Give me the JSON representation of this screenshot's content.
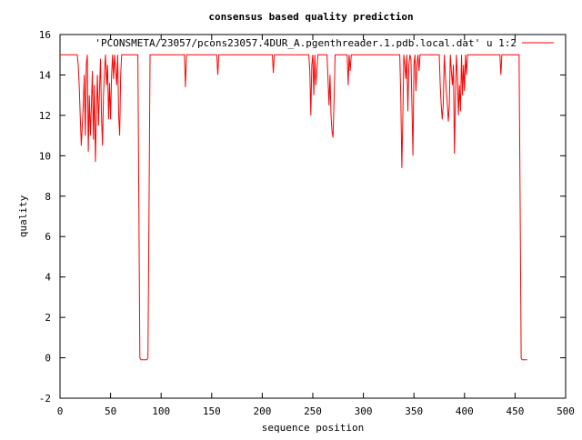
{
  "chart_data": {
    "type": "line",
    "title": "consensus based quality prediction",
    "xlabel": "sequence position",
    "ylabel": "quality",
    "xlim": [
      0,
      500
    ],
    "ylim": [
      -2,
      16
    ],
    "xticks": [
      0,
      50,
      100,
      150,
      200,
      250,
      300,
      350,
      400,
      450,
      500
    ],
    "yticks": [
      -2,
      0,
      2,
      4,
      6,
      8,
      10,
      12,
      14,
      16
    ],
    "grid": false,
    "legend_position": "top-right",
    "series": [
      {
        "name": "'PCONSMETA/23057/pcons23057.4DUR_A.pgenthreader.1.pdb.local.dat' u 1:2",
        "color": "#ff0000",
        "points": [
          [
            0,
            15
          ],
          [
            17,
            15
          ],
          [
            18,
            14.5
          ],
          [
            19,
            13.5
          ],
          [
            20,
            12
          ],
          [
            21,
            10.5
          ],
          [
            22,
            11.5
          ],
          [
            23,
            12.5
          ],
          [
            24,
            14
          ],
          [
            25,
            11
          ],
          [
            26,
            14.5
          ],
          [
            27,
            15
          ],
          [
            28,
            10.2
          ],
          [
            29,
            13
          ],
          [
            30,
            11
          ],
          [
            31,
            12.5
          ],
          [
            32,
            14.2
          ],
          [
            33,
            10.8
          ],
          [
            34,
            13.5
          ],
          [
            35,
            9.7
          ],
          [
            36,
            12
          ],
          [
            37,
            14
          ],
          [
            38,
            11.5
          ],
          [
            39,
            13.2
          ],
          [
            40,
            14.8
          ],
          [
            41,
            12
          ],
          [
            42,
            10.5
          ],
          [
            43,
            13
          ],
          [
            44,
            14.2
          ],
          [
            45,
            15
          ],
          [
            46,
            13.5
          ],
          [
            47,
            14.5
          ],
          [
            48,
            11.8
          ],
          [
            49,
            13.6
          ],
          [
            50,
            11.8
          ],
          [
            51,
            14
          ],
          [
            52,
            15
          ],
          [
            53,
            13.8
          ],
          [
            54,
            15
          ],
          [
            55,
            14.2
          ],
          [
            56,
            13.5
          ],
          [
            57,
            15
          ],
          [
            58,
            12
          ],
          [
            59,
            11
          ],
          [
            60,
            14
          ],
          [
            61,
            15
          ],
          [
            77,
            15
          ],
          [
            78,
            7.5
          ],
          [
            79,
            0
          ],
          [
            80,
            -0.1
          ],
          [
            86,
            -0.1
          ],
          [
            87,
            0
          ],
          [
            88,
            7.5
          ],
          [
            89,
            15
          ],
          [
            123,
            15
          ],
          [
            124,
            13.4
          ],
          [
            125,
            15
          ],
          [
            155,
            15
          ],
          [
            156,
            14
          ],
          [
            157,
            15
          ],
          [
            210,
            15
          ],
          [
            211,
            14.1
          ],
          [
            212,
            15
          ],
          [
            246,
            15
          ],
          [
            247,
            14.2
          ],
          [
            248,
            12
          ],
          [
            249,
            14.5
          ],
          [
            250,
            15
          ],
          [
            251,
            13
          ],
          [
            252,
            15
          ],
          [
            253,
            13.5
          ],
          [
            254,
            14.2
          ],
          [
            255,
            15
          ],
          [
            264,
            15
          ],
          [
            265,
            13.8
          ],
          [
            266,
            12.5
          ],
          [
            267,
            14
          ],
          [
            268,
            12
          ],
          [
            269,
            11.2
          ],
          [
            270,
            10.9
          ],
          [
            271,
            12.8
          ],
          [
            272,
            15
          ],
          [
            284,
            15
          ],
          [
            285,
            13.5
          ],
          [
            286,
            15
          ],
          [
            287,
            14.2
          ],
          [
            288,
            15
          ],
          [
            336,
            15
          ],
          [
            337,
            13
          ],
          [
            338,
            9.4
          ],
          [
            339,
            12
          ],
          [
            340,
            15
          ],
          [
            341,
            14.5
          ],
          [
            342,
            13.8
          ],
          [
            343,
            15
          ],
          [
            344,
            12.2
          ],
          [
            345,
            14.5
          ],
          [
            346,
            15
          ],
          [
            347,
            14.8
          ],
          [
            348,
            12.5
          ],
          [
            349,
            10
          ],
          [
            350,
            14.5
          ],
          [
            351,
            15
          ],
          [
            352,
            13.2
          ],
          [
            353,
            14.5
          ],
          [
            354,
            15
          ],
          [
            355,
            14.2
          ],
          [
            356,
            15
          ],
          [
            375,
            15
          ],
          [
            376,
            13.5
          ],
          [
            377,
            12.5
          ],
          [
            378,
            11.8
          ],
          [
            379,
            12.5
          ],
          [
            380,
            15
          ],
          [
            381,
            14
          ],
          [
            382,
            13.2
          ],
          [
            383,
            12.6
          ],
          [
            384,
            11.7
          ],
          [
            385,
            12.5
          ],
          [
            386,
            15
          ],
          [
            387,
            14.2
          ],
          [
            388,
            13.5
          ],
          [
            389,
            14.5
          ],
          [
            390,
            10.1
          ],
          [
            391,
            12.8
          ],
          [
            392,
            15
          ],
          [
            393,
            14
          ],
          [
            394,
            12
          ],
          [
            395,
            13.5
          ],
          [
            396,
            12.2
          ],
          [
            397,
            15
          ],
          [
            398,
            13
          ],
          [
            399,
            14.5
          ],
          [
            400,
            13.2
          ],
          [
            401,
            15
          ],
          [
            402,
            14
          ],
          [
            403,
            15
          ],
          [
            435,
            15
          ],
          [
            436,
            14
          ],
          [
            437,
            15
          ],
          [
            454,
            15
          ],
          [
            455,
            7.5
          ],
          [
            456,
            0
          ],
          [
            457,
            -0.1
          ],
          [
            462,
            -0.1
          ]
        ]
      }
    ]
  }
}
